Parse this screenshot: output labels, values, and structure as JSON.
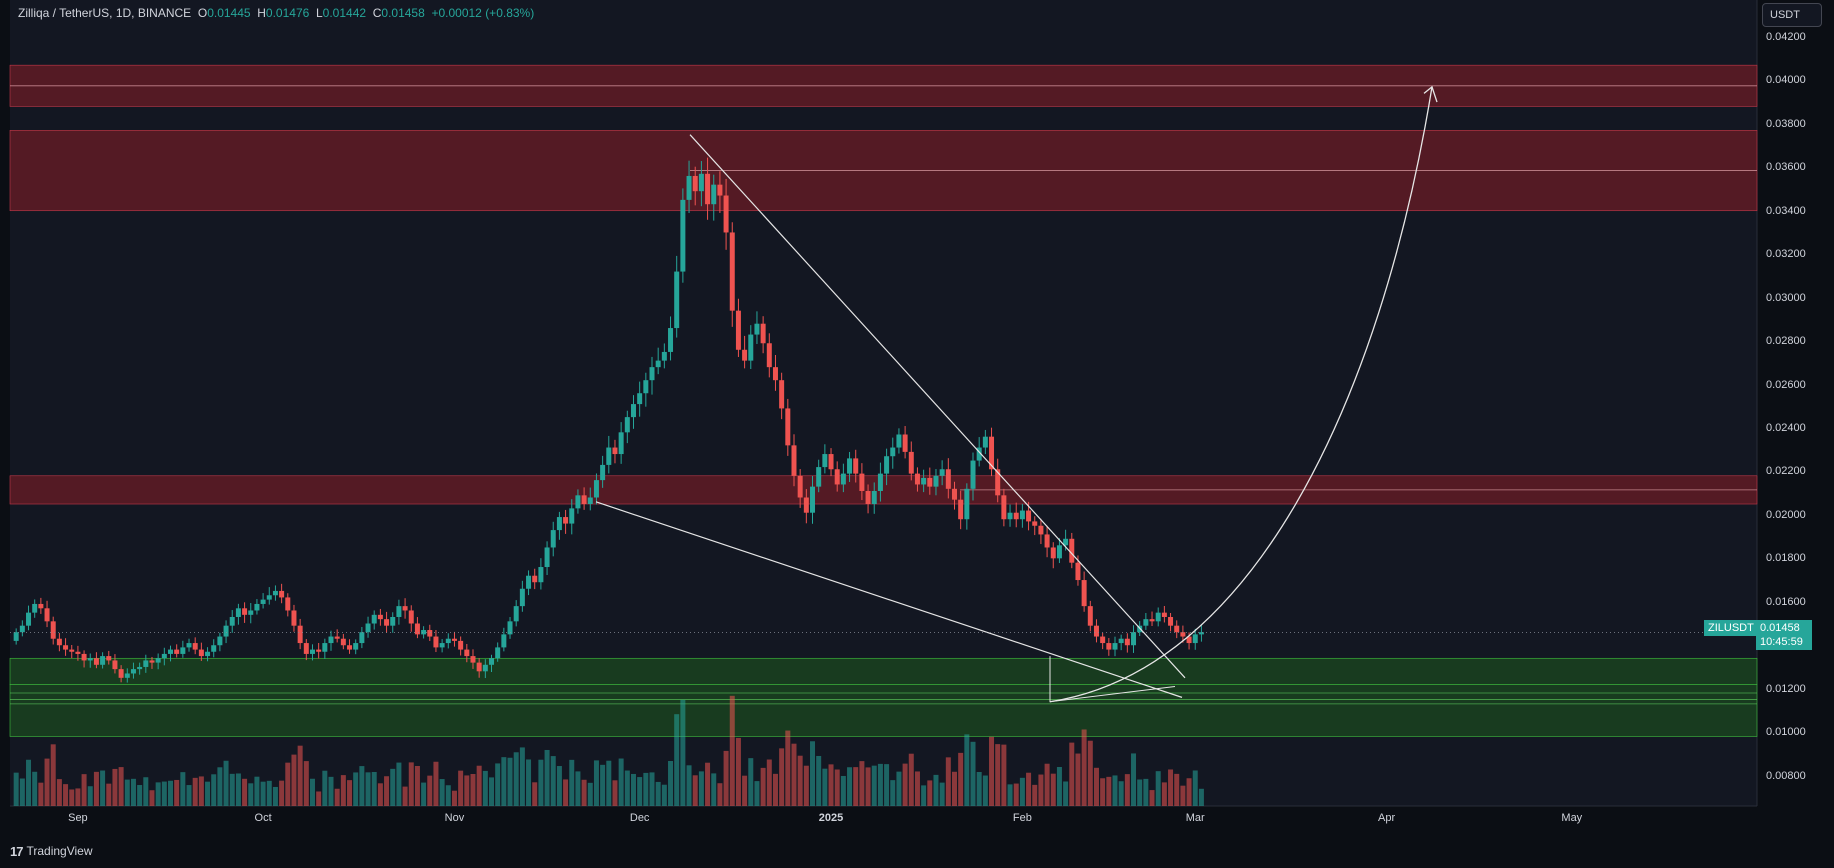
{
  "header": {
    "symbol": "Zilliqa / TetherUS, 1D, BINANCE",
    "o_label": "O",
    "o_value": "0.01445",
    "h_label": "H",
    "h_value": "0.01476",
    "l_label": "L",
    "l_value": "0.01442",
    "c_label": "C",
    "c_value": "0.01458",
    "change": "+0.00012 (+0.83%)"
  },
  "currency_button": "USDT",
  "price_axis_ticks": [
    "0.04200",
    "0.04000",
    "0.03800",
    "0.03600",
    "0.03400",
    "0.03200",
    "0.03000",
    "0.02800",
    "0.02600",
    "0.02400",
    "0.02200",
    "0.02000",
    "0.01800",
    "0.01600",
    "0.01200",
    "0.01000",
    "0.00800"
  ],
  "time_axis_ticks": [
    "Sep",
    "Oct",
    "Nov",
    "Dec",
    "2025",
    "Feb",
    "Mar",
    "Apr",
    "May"
  ],
  "last_price": {
    "ticker": "ZILUSDT",
    "price": "0.01458",
    "countdown": "10:45:59"
  },
  "footer": {
    "brand": "TradingView"
  },
  "colors": {
    "up": "#26a69a",
    "down": "#ef5350",
    "background": "#131722",
    "resistance_zone": "#6b1c26",
    "support_zone": "#1e5a1e"
  },
  "chart_data": {
    "type": "candlestick",
    "symbol": "ZILUSDT",
    "x_range": [
      "2024-08-21",
      "2025-05-31"
    ],
    "y_range": [
      0.0066,
      0.0437
    ],
    "resistance_zones": [
      [
        0.0388,
        0.0407
      ],
      [
        0.034,
        0.0377
      ],
      [
        0.0205,
        0.0218
      ]
    ],
    "support_zones": [
      [
        0.0122,
        0.0134
      ],
      [
        0.0098,
        0.0122
      ]
    ],
    "last_close": 0.01458,
    "closes": [
      0.0146,
      0.0149,
      0.0155,
      0.0159,
      0.0157,
      0.0151,
      0.0143,
      0.014,
      0.0138,
      0.0137,
      0.0136,
      0.0133,
      0.0134,
      0.0131,
      0.0135,
      0.0133,
      0.0129,
      0.0125,
      0.0127,
      0.0129,
      0.013,
      0.0133,
      0.0132,
      0.0134,
      0.0136,
      0.0138,
      0.0136,
      0.0139,
      0.0141,
      0.0138,
      0.0135,
      0.0137,
      0.014,
      0.0144,
      0.0149,
      0.0153,
      0.0157,
      0.0154,
      0.0156,
      0.0159,
      0.0161,
      0.0163,
      0.0165,
      0.0162,
      0.0156,
      0.0149,
      0.0141,
      0.0136,
      0.0138,
      0.0137,
      0.0141,
      0.0144,
      0.0143,
      0.014,
      0.0138,
      0.0141,
      0.0146,
      0.015,
      0.0154,
      0.0152,
      0.0149,
      0.0153,
      0.0158,
      0.0156,
      0.015,
      0.0145,
      0.0147,
      0.0144,
      0.0139,
      0.0141,
      0.0143,
      0.0142,
      0.0138,
      0.0135,
      0.0132,
      0.0128,
      0.0131,
      0.0134,
      0.0139,
      0.0145,
      0.0151,
      0.0158,
      0.0166,
      0.0172,
      0.0169,
      0.0176,
      0.0185,
      0.0193,
      0.0199,
      0.0196,
      0.0203,
      0.0209,
      0.0205,
      0.0208,
      0.0216,
      0.0223,
      0.0231,
      0.0228,
      0.0238,
      0.0245,
      0.0251,
      0.0256,
      0.0262,
      0.0268,
      0.0271,
      0.0275,
      0.0286,
      0.0312,
      0.0345,
      0.0356,
      0.0349,
      0.0357,
      0.0343,
      0.0352,
      0.0347,
      0.033,
      0.0294,
      0.0276,
      0.0271,
      0.0283,
      0.0288,
      0.0279,
      0.0268,
      0.0262,
      0.0249,
      0.0232,
      0.0218,
      0.0208,
      0.0201,
      0.0213,
      0.0222,
      0.0228,
      0.0221,
      0.0214,
      0.0219,
      0.0226,
      0.0219,
      0.0211,
      0.0205,
      0.0211,
      0.0219,
      0.0227,
      0.0231,
      0.0237,
      0.0229,
      0.0219,
      0.0214,
      0.0217,
      0.0213,
      0.0218,
      0.0221,
      0.0212,
      0.0207,
      0.0198,
      0.0212,
      0.0225,
      0.0231,
      0.0236,
      0.0221,
      0.0209,
      0.0198,
      0.0201,
      0.0198,
      0.0202,
      0.0197,
      0.0195,
      0.0191,
      0.0185,
      0.018,
      0.0186,
      0.0189,
      0.0178,
      0.017,
      0.0158,
      0.0149,
      0.0144,
      0.0141,
      0.0138,
      0.0141,
      0.0143,
      0.014,
      0.0146,
      0.0149,
      0.0152,
      0.0151,
      0.0155,
      0.0153,
      0.0149,
      0.0146,
      0.0144,
      0.0141,
      0.0145,
      0.0146
    ],
    "volume_note": "volume histogram shown in lower pane"
  }
}
